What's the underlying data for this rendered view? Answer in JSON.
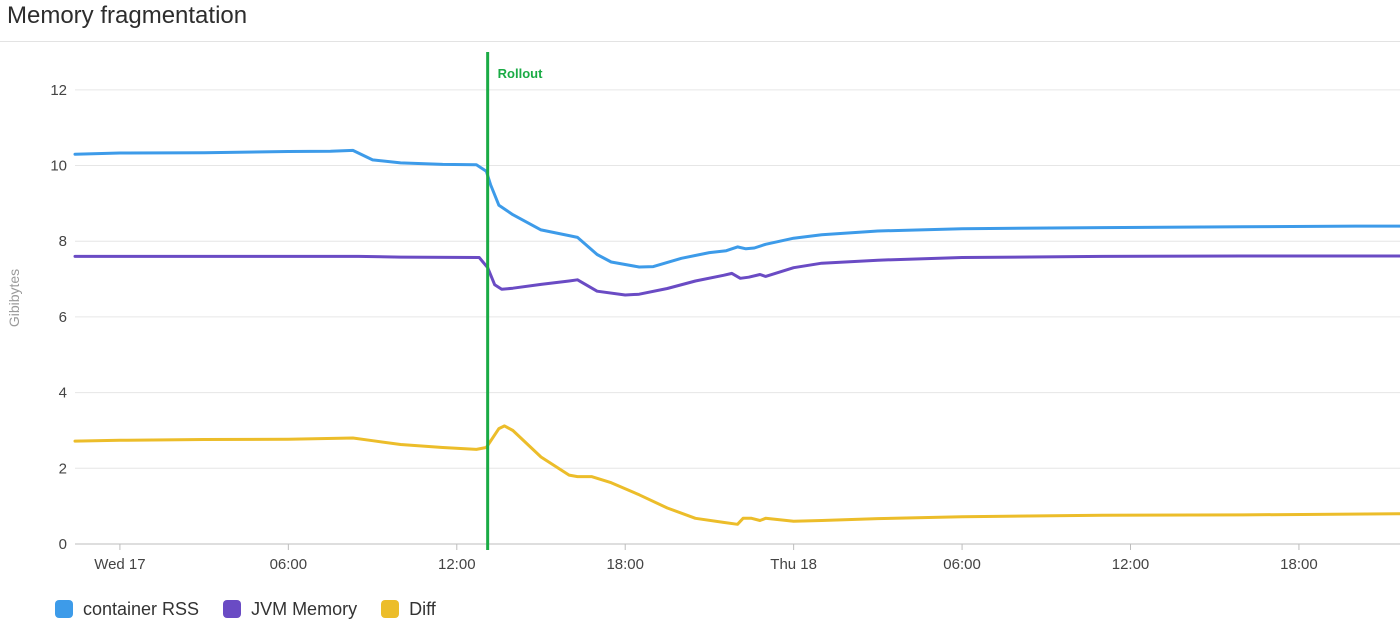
{
  "panel": {
    "title": "Memory fragmentation"
  },
  "chart_data": {
    "type": "line",
    "title": "Memory fragmentation",
    "ylabel": "Gibibytes",
    "xlabel": "",
    "ylim": [
      0,
      13
    ],
    "yticks": [
      0,
      2,
      4,
      6,
      8,
      10,
      12
    ],
    "xlim": [
      -1.6,
      45.6
    ],
    "xticks": [
      {
        "x": 0,
        "label": "Wed 17"
      },
      {
        "x": 6,
        "label": "06:00"
      },
      {
        "x": 12,
        "label": "12:00"
      },
      {
        "x": 18,
        "label": "18:00"
      },
      {
        "x": 24,
        "label": "Thu 18"
      },
      {
        "x": 30,
        "label": "06:00"
      },
      {
        "x": 36,
        "label": "12:00"
      },
      {
        "x": 42,
        "label": "18:00"
      }
    ],
    "grid": true,
    "legend_position": "bottom-left",
    "annotations": [
      {
        "x": 13.1,
        "label": "Rollout",
        "color": "#1aab45"
      }
    ],
    "series": [
      {
        "name": "container RSS",
        "color": "#3d9be9",
        "points": [
          [
            -1.6,
            10.3
          ],
          [
            0,
            10.33
          ],
          [
            3,
            10.34
          ],
          [
            6,
            10.37
          ],
          [
            7.5,
            10.38
          ],
          [
            8.3,
            10.4
          ],
          [
            9,
            10.15
          ],
          [
            10,
            10.07
          ],
          [
            11.5,
            10.03
          ],
          [
            12.7,
            10.02
          ],
          [
            13.05,
            9.85
          ],
          [
            13.2,
            9.5
          ],
          [
            13.5,
            8.95
          ],
          [
            14,
            8.7
          ],
          [
            15,
            8.3
          ],
          [
            16,
            8.15
          ],
          [
            16.3,
            8.1
          ],
          [
            17,
            7.65
          ],
          [
            17.5,
            7.45
          ],
          [
            18.5,
            7.32
          ],
          [
            19,
            7.33
          ],
          [
            20,
            7.55
          ],
          [
            21,
            7.7
          ],
          [
            21.6,
            7.75
          ],
          [
            22,
            7.85
          ],
          [
            22.3,
            7.8
          ],
          [
            22.6,
            7.82
          ],
          [
            23,
            7.92
          ],
          [
            24,
            8.08
          ],
          [
            25,
            8.17
          ],
          [
            27,
            8.27
          ],
          [
            30,
            8.33
          ],
          [
            35,
            8.36
          ],
          [
            40,
            8.38
          ],
          [
            44,
            8.4
          ],
          [
            45.6,
            8.4
          ]
        ]
      },
      {
        "name": "JVM Memory",
        "color": "#6a4bc4",
        "points": [
          [
            -1.6,
            7.6
          ],
          [
            0,
            7.6
          ],
          [
            5,
            7.6
          ],
          [
            8.5,
            7.6
          ],
          [
            10,
            7.58
          ],
          [
            12.8,
            7.57
          ],
          [
            13.1,
            7.3
          ],
          [
            13.35,
            6.85
          ],
          [
            13.6,
            6.73
          ],
          [
            14,
            6.76
          ],
          [
            15,
            6.86
          ],
          [
            16,
            6.95
          ],
          [
            16.3,
            6.98
          ],
          [
            17,
            6.68
          ],
          [
            18,
            6.58
          ],
          [
            18.5,
            6.6
          ],
          [
            19.5,
            6.75
          ],
          [
            20.5,
            6.95
          ],
          [
            21.5,
            7.1
          ],
          [
            21.8,
            7.15
          ],
          [
            22.1,
            7.02
          ],
          [
            22.4,
            7.05
          ],
          [
            22.8,
            7.12
          ],
          [
            23,
            7.07
          ],
          [
            24,
            7.3
          ],
          [
            25,
            7.42
          ],
          [
            27,
            7.5
          ],
          [
            30,
            7.57
          ],
          [
            35,
            7.6
          ],
          [
            40,
            7.61
          ],
          [
            45.6,
            7.61
          ]
        ]
      },
      {
        "name": "Diff",
        "color": "#ecbd2a",
        "points": [
          [
            -1.6,
            2.72
          ],
          [
            0,
            2.74
          ],
          [
            3,
            2.76
          ],
          [
            6,
            2.77
          ],
          [
            8.3,
            2.8
          ],
          [
            9,
            2.73
          ],
          [
            10,
            2.63
          ],
          [
            11.5,
            2.55
          ],
          [
            12.7,
            2.5
          ],
          [
            13.05,
            2.55
          ],
          [
            13.5,
            3.05
          ],
          [
            13.7,
            3.12
          ],
          [
            14,
            3.0
          ],
          [
            15,
            2.3
          ],
          [
            16,
            1.82
          ],
          [
            16.3,
            1.78
          ],
          [
            16.8,
            1.78
          ],
          [
            17.5,
            1.62
          ],
          [
            18.5,
            1.3
          ],
          [
            19.5,
            0.95
          ],
          [
            20.5,
            0.68
          ],
          [
            21.5,
            0.57
          ],
          [
            22,
            0.52
          ],
          [
            22.2,
            0.68
          ],
          [
            22.5,
            0.68
          ],
          [
            22.8,
            0.62
          ],
          [
            23,
            0.68
          ],
          [
            23.5,
            0.64
          ],
          [
            24,
            0.6
          ],
          [
            25,
            0.62
          ],
          [
            27,
            0.67
          ],
          [
            30,
            0.72
          ],
          [
            35,
            0.76
          ],
          [
            40,
            0.77
          ],
          [
            45.6,
            0.8
          ]
        ]
      }
    ]
  }
}
